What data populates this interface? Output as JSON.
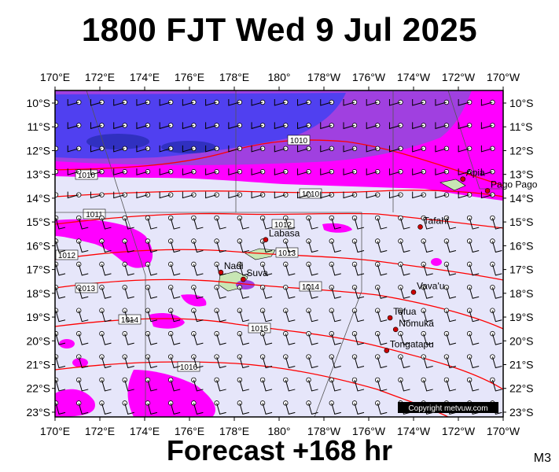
{
  "title": "1800 FJT Wed 9 Jul 2025",
  "footer": "Forecast +168 hr",
  "code": "M3",
  "copyright": "Copyright metvuw.com",
  "longitudes": [
    "170°E",
    "172°E",
    "174°E",
    "176°E",
    "178°E",
    "180°",
    "178°W",
    "176°W",
    "174°W",
    "172°W",
    "170°W"
  ],
  "latitudes": [
    "10°S",
    "11°S",
    "12°S",
    "13°S",
    "14°S",
    "15°S",
    "16°S",
    "17°S",
    "18°S",
    "19°S",
    "20°S",
    "21°S",
    "22°S",
    "23°S"
  ],
  "places": [
    {
      "name": "Apia",
      "lon": -171.8,
      "lat": -13.8
    },
    {
      "name": "Pago Pago",
      "lon": -170.7,
      "lat": -14.3
    },
    {
      "name": "Tafahi",
      "lon": -173.7,
      "lat": -15.85
    },
    {
      "name": "Labasa",
      "lon": 179.4,
      "lat": -16.4
    },
    {
      "name": "Nadi",
      "lon": 177.4,
      "lat": -17.8
    },
    {
      "name": "Suva",
      "lon": 178.4,
      "lat": -18.1
    },
    {
      "name": "Vava'u",
      "lon": -174.0,
      "lat": -18.65
    },
    {
      "name": "Tofua",
      "lon": -175.05,
      "lat": -19.75
    },
    {
      "name": "Nomuka",
      "lon": -174.8,
      "lat": -20.25
    },
    {
      "name": "Tongatapu",
      "lon": -175.2,
      "lat": -21.15
    }
  ],
  "isobars": [
    "1010",
    "1010",
    "1010",
    "1011",
    "1012",
    "1012",
    "1013",
    "1013",
    "1014",
    "1014",
    "1015",
    "1016"
  ],
  "colors": {
    "background": "#e6e6fa",
    "isobar": "#ff0000",
    "rain_light": "#ff00ff",
    "rain_medium": "#a040e0",
    "rain_heavy": "#5040f0",
    "rain_extreme": "#3030c0",
    "land": "#c8e6b4"
  }
}
